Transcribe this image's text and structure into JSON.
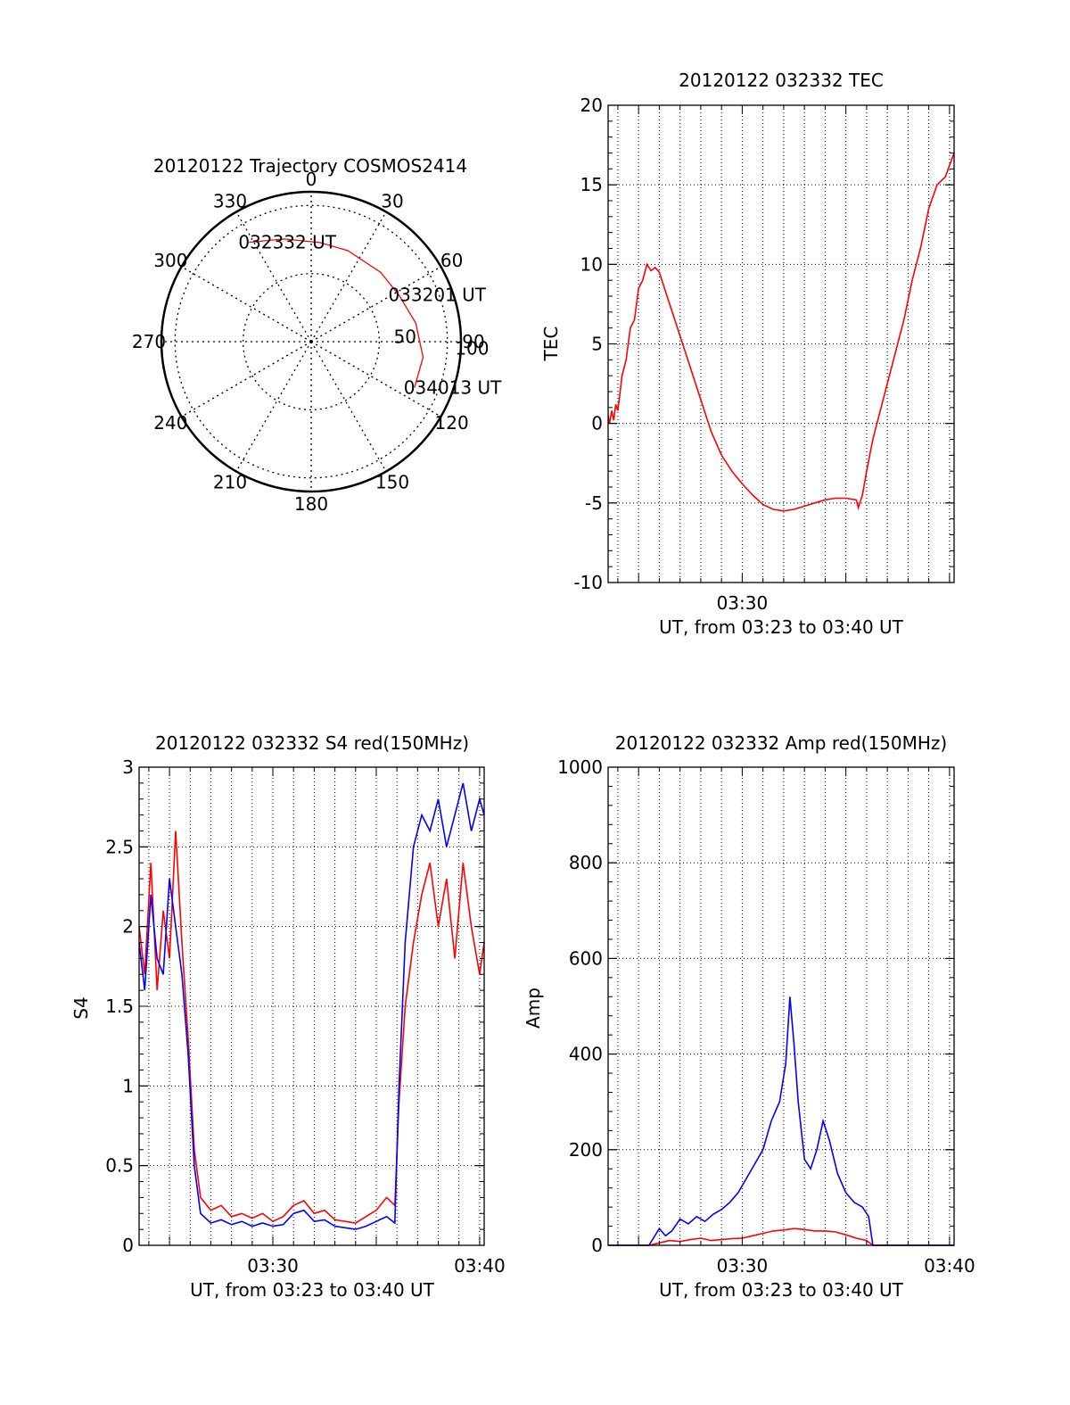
{
  "colors": {
    "red": "#ff0000",
    "blue": "#0000ff",
    "axis": "#000000",
    "grid": "#000000"
  },
  "chart_data": [
    {
      "type": "polar",
      "title": "20120122 Trajectory COSMOS2414",
      "angle_labels": [
        "0",
        "30",
        "60",
        "90",
        "120",
        "150",
        "180",
        "210",
        "240",
        "270",
        "300",
        "330"
      ],
      "radial_labels": [
        "50",
        "100"
      ],
      "rings": [
        50,
        100
      ],
      "grid": true,
      "series": [
        {
          "color": "red",
          "points": [
            {
              "az": 328,
              "zen": 86
            },
            {
              "az": 345,
              "zen": 78
            },
            {
              "az": 5,
              "zen": 73
            },
            {
              "az": 22,
              "zen": 72
            },
            {
              "az": 45,
              "zen": 72
            },
            {
              "az": 62,
              "zen": 73
            },
            {
              "az": 80,
              "zen": 78
            },
            {
              "az": 98,
              "zen": 83
            },
            {
              "az": 114,
              "zen": 83
            }
          ]
        }
      ],
      "annotations": [
        {
          "text": "032332 UT",
          "az": 328,
          "zen": 86
        },
        {
          "text": "033201 UT",
          "az": 62,
          "zen": 73
        },
        {
          "text": "034013 UT",
          "az": 114,
          "zen": 83
        }
      ]
    },
    {
      "type": "line",
      "title": "20120122 032332 TEC",
      "xlabel": "UT, from 03:23 to 03:40 UT",
      "ylabel": "TEC",
      "x_unit": "minutes",
      "xlim": [
        23.53,
        40.22
      ],
      "ylim": [
        -10,
        20
      ],
      "x_tick_labels": [
        {
          "x": 30,
          "label": "03:30"
        }
      ],
      "y_tick_labels": [
        "-10",
        "-5",
        "0",
        "5",
        "10",
        "15",
        "20"
      ],
      "grid": true,
      "series": [
        {
          "color": "red",
          "x": [
            23.53,
            23.6,
            23.7,
            23.8,
            23.9,
            24.0,
            24.2,
            24.4,
            24.6,
            24.8,
            25.0,
            25.2,
            25.4,
            25.6,
            25.8,
            26.0,
            26.5,
            27.0,
            27.5,
            28.0,
            28.5,
            29.0,
            29.5,
            30.0,
            30.5,
            31.0,
            31.5,
            32.0,
            32.5,
            33.0,
            33.5,
            34.0,
            34.5,
            35.0,
            35.5,
            35.6,
            35.8,
            36.0,
            36.3,
            36.6,
            37.0,
            37.4,
            37.8,
            38.2,
            38.6,
            39.0,
            39.4,
            39.8,
            40.22
          ],
          "y": [
            0.5,
            0.0,
            0.8,
            0.2,
            1.2,
            0.8,
            3.0,
            4.0,
            6.0,
            6.5,
            8.5,
            9.0,
            10.0,
            9.6,
            9.8,
            9.5,
            7.5,
            5.5,
            3.5,
            1.5,
            -0.5,
            -2.0,
            -3.0,
            -3.8,
            -4.5,
            -5.1,
            -5.4,
            -5.5,
            -5.4,
            -5.2,
            -5.0,
            -4.8,
            -4.7,
            -4.7,
            -4.8,
            -5.3,
            -4.5,
            -3.0,
            -1.0,
            0.5,
            2.5,
            4.5,
            6.5,
            9.0,
            11.0,
            13.5,
            15.0,
            15.5,
            17.0
          ]
        }
      ]
    },
    {
      "type": "line",
      "title": "20120122 032332 S4 red(150MHz)",
      "xlabel": "UT, from 03:23 to 03:40 UT",
      "ylabel": "S4",
      "x_unit": "minutes",
      "xlim": [
        23.53,
        40.22
      ],
      "ylim": [
        0,
        3
      ],
      "x_tick_labels": [
        {
          "x": 30,
          "label": "03:30"
        },
        {
          "x": 40,
          "label": "03:40"
        }
      ],
      "y_tick_labels": [
        "0",
        "0.5",
        "1",
        "1.5",
        "2",
        "2.5",
        "3"
      ],
      "grid": true,
      "series": [
        {
          "color": "red",
          "x": [
            23.53,
            23.8,
            24.1,
            24.4,
            24.7,
            25.0,
            25.3,
            25.6,
            25.9,
            26.2,
            26.5,
            27.0,
            27.5,
            28.0,
            28.5,
            29.0,
            29.5,
            30.0,
            30.5,
            31.0,
            31.5,
            32.0,
            32.5,
            33.0,
            33.5,
            34.0,
            34.5,
            35.0,
            35.5,
            35.9,
            36.1,
            36.4,
            36.8,
            37.2,
            37.6,
            38.0,
            38.4,
            38.8,
            39.2,
            39.6,
            40.0,
            40.22
          ],
          "y": [
            2.0,
            1.7,
            2.4,
            1.6,
            2.1,
            1.8,
            2.6,
            1.9,
            1.3,
            0.6,
            0.3,
            0.22,
            0.25,
            0.18,
            0.2,
            0.17,
            0.2,
            0.15,
            0.18,
            0.25,
            0.28,
            0.2,
            0.22,
            0.16,
            0.15,
            0.14,
            0.18,
            0.22,
            0.3,
            0.25,
            0.9,
            1.5,
            1.9,
            2.2,
            2.4,
            2.0,
            2.3,
            1.8,
            2.4,
            2.0,
            1.7,
            1.9
          ]
        },
        {
          "color": "blue",
          "x": [
            23.53,
            23.8,
            24.1,
            24.4,
            24.7,
            25.0,
            25.3,
            25.6,
            25.9,
            26.2,
            26.5,
            27.0,
            27.5,
            28.0,
            28.5,
            29.0,
            29.5,
            30.0,
            30.5,
            31.0,
            31.5,
            32.0,
            32.5,
            33.0,
            33.5,
            34.0,
            34.5,
            35.0,
            35.5,
            35.9,
            36.1,
            36.4,
            36.8,
            37.2,
            37.6,
            38.0,
            38.4,
            38.8,
            39.2,
            39.6,
            40.0,
            40.22
          ],
          "y": [
            1.9,
            1.6,
            2.2,
            1.8,
            1.7,
            2.3,
            2.0,
            1.7,
            1.2,
            0.5,
            0.2,
            0.14,
            0.16,
            0.13,
            0.15,
            0.12,
            0.14,
            0.12,
            0.13,
            0.2,
            0.22,
            0.15,
            0.16,
            0.12,
            0.11,
            0.1,
            0.12,
            0.15,
            0.18,
            0.14,
            1.0,
            1.9,
            2.5,
            2.7,
            2.6,
            2.8,
            2.5,
            2.7,
            2.9,
            2.6,
            2.8,
            2.7
          ]
        }
      ]
    },
    {
      "type": "line",
      "title": "20120122 032332 Amp red(150MHz)",
      "xlabel": "UT, from 03:23 to 03:40 UT",
      "ylabel": "Amp",
      "x_unit": "minutes",
      "xlim": [
        23.53,
        40.22
      ],
      "ylim": [
        0,
        1000
      ],
      "x_tick_labels": [
        {
          "x": 30,
          "label": "03:30"
        },
        {
          "x": 40,
          "label": "03:40"
        }
      ],
      "y_tick_labels": [
        "0",
        "200",
        "400",
        "600",
        "800",
        "1000"
      ],
      "grid": true,
      "series": [
        {
          "color": "red",
          "x": [
            23.53,
            25.5,
            26.0,
            26.5,
            27.0,
            27.5,
            28.0,
            28.5,
            29.0,
            29.5,
            30.0,
            30.5,
            31.0,
            31.5,
            32.0,
            32.5,
            33.0,
            33.5,
            34.0,
            34.5,
            35.0,
            35.5,
            36.0,
            36.3,
            37.0,
            40.22
          ],
          "y": [
            0,
            0,
            5,
            10,
            8,
            12,
            15,
            10,
            12,
            14,
            15,
            20,
            25,
            30,
            32,
            35,
            33,
            30,
            30,
            28,
            22,
            15,
            10,
            0,
            0,
            0
          ]
        },
        {
          "color": "blue",
          "x": [
            23.53,
            25.5,
            26.0,
            26.3,
            26.6,
            27.0,
            27.4,
            27.8,
            28.2,
            28.6,
            29.0,
            29.4,
            29.8,
            30.2,
            30.6,
            31.0,
            31.4,
            31.8,
            32.1,
            32.3,
            32.5,
            32.7,
            33.0,
            33.3,
            33.6,
            33.9,
            34.2,
            34.6,
            35.0,
            35.4,
            35.8,
            36.1,
            36.3,
            37.0,
            40.22
          ],
          "y": [
            0,
            0,
            35,
            20,
            30,
            55,
            45,
            60,
            50,
            65,
            75,
            90,
            110,
            140,
            170,
            200,
            260,
            300,
            380,
            520,
            420,
            300,
            180,
            160,
            200,
            260,
            220,
            150,
            110,
            90,
            80,
            60,
            0,
            0,
            0
          ]
        }
      ]
    }
  ]
}
